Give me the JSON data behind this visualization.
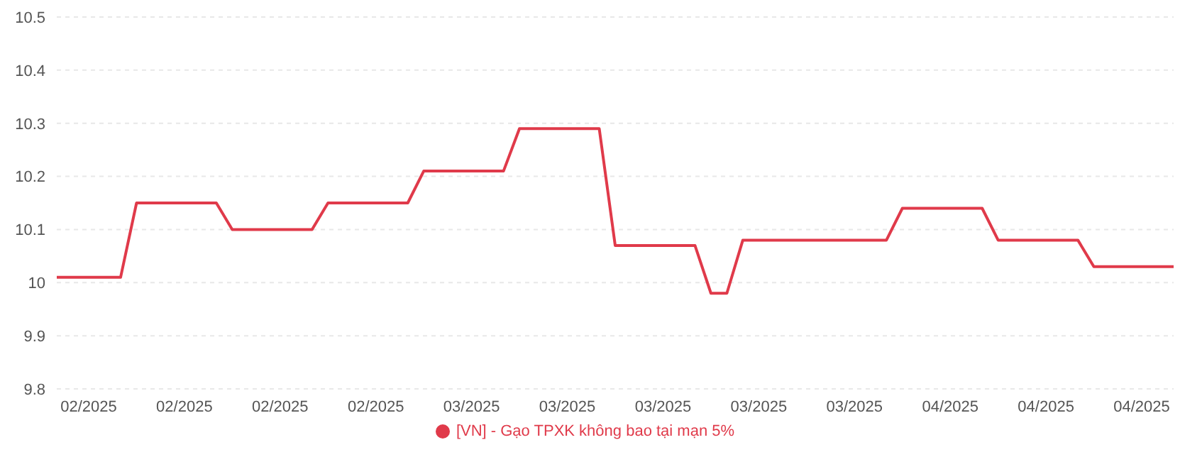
{
  "chart_data": {
    "type": "line",
    "categories": [
      null,
      null,
      "02/2025",
      null,
      null,
      null,
      null,
      null,
      "02/2025",
      null,
      null,
      null,
      null,
      null,
      "02/2025",
      null,
      null,
      null,
      null,
      null,
      "02/2025",
      null,
      null,
      null,
      null,
      null,
      "03/2025",
      null,
      null,
      null,
      null,
      null,
      "03/2025",
      null,
      null,
      null,
      null,
      null,
      "03/2025",
      null,
      null,
      null,
      null,
      null,
      "03/2025",
      null,
      null,
      null,
      null,
      null,
      "03/2025",
      null,
      null,
      null,
      null,
      null,
      "04/2025",
      null,
      null,
      null,
      null,
      null,
      "04/2025",
      null,
      null,
      null,
      null,
      null,
      "04/2025",
      null,
      null
    ],
    "series": [
      {
        "name": "[VN] - Gạo TPXK không bao tại mạn 5%",
        "color": "#e03a4a",
        "values": [
          10.01,
          10.01,
          10.01,
          10.01,
          10.01,
          10.15,
          10.15,
          10.15,
          10.15,
          10.15,
          10.15,
          10.1,
          10.1,
          10.1,
          10.1,
          10.1,
          10.1,
          10.15,
          10.15,
          10.15,
          10.15,
          10.15,
          10.15,
          10.21,
          10.21,
          10.21,
          10.21,
          10.21,
          10.21,
          10.29,
          10.29,
          10.29,
          10.29,
          10.29,
          10.29,
          10.07,
          10.07,
          10.07,
          10.07,
          10.07,
          10.07,
          9.98,
          9.98,
          10.08,
          10.08,
          10.08,
          10.08,
          10.08,
          10.08,
          10.08,
          10.08,
          10.08,
          10.08,
          10.14,
          10.14,
          10.14,
          10.14,
          10.14,
          10.14,
          10.08,
          10.08,
          10.08,
          10.08,
          10.08,
          10.08,
          10.03,
          10.03,
          10.03,
          10.03,
          10.03,
          10.03
        ]
      }
    ],
    "ylim": [
      9.8,
      10.5
    ],
    "yticks": [
      9.8,
      9.9,
      10,
      10.1,
      10.2,
      10.3,
      10.4,
      10.5
    ],
    "grid": "y",
    "legend": "bottom"
  }
}
